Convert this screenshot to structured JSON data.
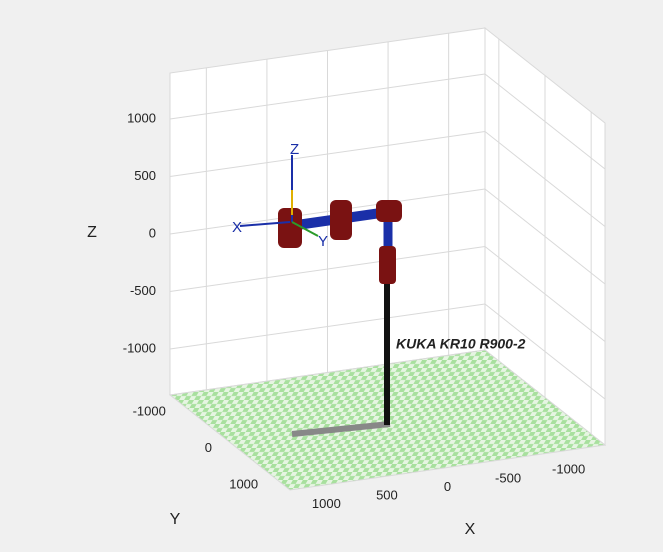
{
  "chart_data": {
    "type": "robot3d",
    "annotation": "KUKA KR10 R900-2",
    "frame_labels": [
      "X",
      "Y",
      "Z"
    ],
    "xlabel": "X",
    "ylabel": "Y",
    "zlabel": "Z",
    "xlim": [
      -1300,
      1300
    ],
    "ylim": [
      -1300,
      1300
    ],
    "zlim": [
      -1400,
      1400
    ],
    "xticks": [
      1000,
      500,
      0,
      -500,
      -1000
    ],
    "yticks": [
      -1000,
      0,
      1000
    ],
    "zticks": [
      1000,
      500,
      0,
      -500,
      -1000
    ],
    "grid": true
  }
}
